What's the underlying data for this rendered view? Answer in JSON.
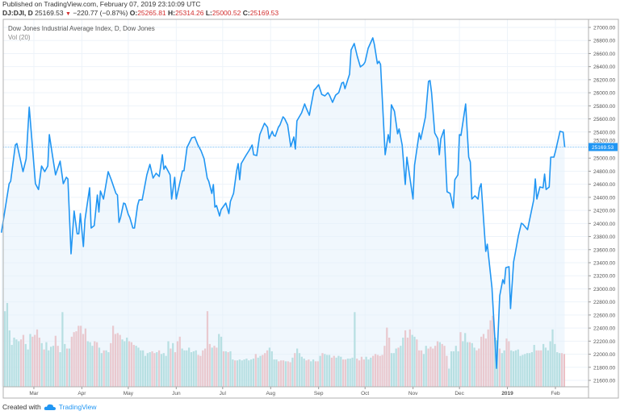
{
  "header": {
    "published": "Published on TradingView.com, February 07, 2019 23:10:09 UTC",
    "symbol": "DJ:DJI, D",
    "last": "25169.53",
    "change": "−220.77 (−0.87%)",
    "open_label": "O:",
    "open": "25265.81",
    "high_label": "H:",
    "high": "25314.26",
    "low_label": "L:",
    "low": "25000.52",
    "close_label": "C:",
    "close": "25169.53"
  },
  "legend": {
    "title": "Dow Jones Industrial Average Index, D, Dow Jones",
    "indicator": "Vol (20)"
  },
  "footer": {
    "created_with": "Created with",
    "brand": "TradingView"
  },
  "colors": {
    "line": "#2196f3",
    "fill": "#e3f0fc",
    "vol_up": "#80cbc4",
    "vol_down": "#ef9a9a",
    "price_tag": "#2196f3",
    "down": "#d32f2f"
  },
  "chart_data": {
    "type": "line",
    "title": "Dow Jones Industrial Average Index, D, Dow Jones",
    "ylim": [
      21500,
      27150
    ],
    "grid": true,
    "last_price_label": "25169.53",
    "y_ticks": [
      "27000.00",
      "26800.00",
      "26600.00",
      "26400.00",
      "26200.00",
      "26000.00",
      "25800.00",
      "25600.00",
      "25400.00",
      "25200.00",
      "25000.00",
      "24800.00",
      "24600.00",
      "24400.00",
      "24200.00",
      "24000.00",
      "23800.00",
      "23600.00",
      "23400.00",
      "23200.00",
      "23000.00",
      "22800.00",
      "22600.00",
      "22400.00",
      "22200.00",
      "22000.00",
      "21800.00",
      "21600.00"
    ],
    "x_ticks": [
      {
        "date": "2018-03-01",
        "label": "Mar"
      },
      {
        "date": "2018-04-01",
        "label": "Apr"
      },
      {
        "date": "2018-05-01",
        "label": "May"
      },
      {
        "date": "2018-06-01",
        "label": "Jun"
      },
      {
        "date": "2018-07-01",
        "label": "Jul"
      },
      {
        "date": "2018-08-01",
        "label": "Aug"
      },
      {
        "date": "2018-09-01",
        "label": "Sep"
      },
      {
        "date": "2018-10-01",
        "label": "Oct"
      },
      {
        "date": "2018-11-01",
        "label": "Nov"
      },
      {
        "date": "2018-12-01",
        "label": "Dec"
      },
      {
        "date": "2019-01-01",
        "label": "2019",
        "bold": true
      },
      {
        "date": "2019-02-01",
        "label": "Feb"
      }
    ],
    "close": [
      [
        "2018-02-08",
        23860
      ],
      [
        "2018-02-13",
        24608
      ],
      [
        "2018-02-14",
        24645
      ],
      [
        "2018-02-17",
        25200
      ],
      [
        "2018-02-18",
        25224
      ],
      [
        "2018-02-22",
        24793
      ],
      [
        "2018-02-24",
        24990
      ],
      [
        "2018-02-26",
        25779
      ],
      [
        "2018-03-02",
        24608
      ],
      [
        "2018-03-04",
        24520
      ],
      [
        "2018-03-06",
        24880
      ],
      [
        "2018-03-08",
        24793
      ],
      [
        "2018-03-10",
        24880
      ],
      [
        "2018-03-11",
        25360
      ],
      [
        "2018-03-13",
        25040
      ],
      [
        "2018-03-15",
        24744
      ],
      [
        "2018-03-18",
        24953
      ],
      [
        "2018-03-20",
        24608
      ],
      [
        "2018-03-22",
        24707
      ],
      [
        "2018-03-23",
        24682
      ],
      [
        "2018-03-25",
        23535
      ],
      [
        "2018-03-27",
        24190
      ],
      [
        "2018-03-29",
        23843
      ],
      [
        "2018-03-30",
        23843
      ],
      [
        "2018-03-31",
        24152
      ],
      [
        "2018-04-02",
        23646
      ],
      [
        "2018-04-03",
        24053
      ],
      [
        "2018-04-06",
        24546
      ],
      [
        "2018-04-07",
        23930
      ],
      [
        "2018-04-09",
        23967
      ],
      [
        "2018-04-11",
        24435
      ],
      [
        "2018-04-12",
        24176
      ],
      [
        "2018-04-13",
        24497
      ],
      [
        "2018-04-15",
        24374
      ],
      [
        "2018-04-18",
        24793
      ],
      [
        "2018-04-20",
        24670
      ],
      [
        "2018-04-23",
        24460
      ],
      [
        "2018-04-24",
        24435
      ],
      [
        "2018-04-25",
        24016
      ],
      [
        "2018-04-26",
        24090
      ],
      [
        "2018-04-28",
        24312
      ],
      [
        "2018-04-29",
        24300
      ],
      [
        "2018-05-01",
        24140
      ],
      [
        "2018-05-02",
        24090
      ],
      [
        "2018-05-04",
        23930
      ],
      [
        "2018-05-05",
        23930
      ],
      [
        "2018-05-07",
        24275
      ],
      [
        "2018-05-08",
        24361
      ],
      [
        "2018-05-10",
        24361
      ],
      [
        "2018-05-13",
        24744
      ],
      [
        "2018-05-15",
        24904
      ],
      [
        "2018-05-17",
        24694
      ],
      [
        "2018-05-19",
        24768
      ],
      [
        "2018-05-21",
        24719
      ],
      [
        "2018-05-23",
        25052
      ],
      [
        "2018-05-24",
        24830
      ],
      [
        "2018-05-25",
        24880
      ],
      [
        "2018-05-28",
        24744
      ],
      [
        "2018-05-29",
        24374
      ],
      [
        "2018-05-31",
        24707
      ],
      [
        "2018-06-01",
        24374
      ],
      [
        "2018-06-05",
        24805
      ],
      [
        "2018-06-06",
        24805
      ],
      [
        "2018-06-08",
        25163
      ],
      [
        "2018-06-11",
        25311
      ],
      [
        "2018-06-13",
        25323
      ],
      [
        "2018-06-15",
        25200
      ],
      [
        "2018-06-17",
        25114
      ],
      [
        "2018-06-19",
        24990
      ],
      [
        "2018-06-21",
        24694
      ],
      [
        "2018-06-22",
        24645
      ],
      [
        "2018-06-24",
        24460
      ],
      [
        "2018-06-25",
        24596
      ],
      [
        "2018-06-26",
        24250
      ],
      [
        "2018-06-27",
        24275
      ],
      [
        "2018-06-29",
        24115
      ],
      [
        "2018-06-30",
        24213
      ],
      [
        "2018-07-03",
        24312
      ],
      [
        "2018-07-05",
        24152
      ],
      [
        "2018-07-06",
        24337
      ],
      [
        "2018-07-08",
        24460
      ],
      [
        "2018-07-10",
        24805
      ],
      [
        "2018-07-11",
        24916
      ],
      [
        "2018-07-12",
        24670
      ],
      [
        "2018-07-13",
        24916
      ],
      [
        "2018-07-16",
        25040
      ],
      [
        "2018-07-18",
        25114
      ],
      [
        "2018-07-20",
        25200
      ],
      [
        "2018-07-21",
        25052
      ],
      [
        "2018-07-23",
        25040
      ],
      [
        "2018-07-25",
        25360
      ],
      [
        "2018-07-28",
        25533
      ],
      [
        "2018-07-30",
        25471
      ],
      [
        "2018-07-31",
        25298
      ],
      [
        "2018-08-02",
        25409
      ],
      [
        "2018-08-03",
        25348
      ],
      [
        "2018-08-04",
        25335
      ],
      [
        "2018-08-06",
        25471
      ],
      [
        "2018-08-07",
        25508
      ],
      [
        "2018-08-09",
        25631
      ],
      [
        "2018-08-10",
        25607
      ],
      [
        "2018-08-12",
        25508
      ],
      [
        "2018-08-14",
        25175
      ],
      [
        "2018-08-16",
        25323
      ],
      [
        "2018-08-17",
        25138
      ],
      [
        "2018-08-18",
        25570
      ],
      [
        "2018-08-21",
        25693
      ],
      [
        "2018-08-23",
        25829
      ],
      [
        "2018-08-24",
        25767
      ],
      [
        "2018-08-26",
        25656
      ],
      [
        "2018-08-27",
        25792
      ],
      [
        "2018-08-29",
        26038
      ],
      [
        "2018-08-30",
        26063
      ],
      [
        "2018-09-01",
        26124
      ],
      [
        "2018-09-03",
        25976
      ],
      [
        "2018-09-05",
        25952
      ],
      [
        "2018-09-07",
        26001
      ],
      [
        "2018-09-08",
        25964
      ],
      [
        "2018-09-10",
        25853
      ],
      [
        "2018-09-12",
        25964
      ],
      [
        "2018-09-14",
        26001
      ],
      [
        "2018-09-16",
        26149
      ],
      [
        "2018-09-17",
        26161
      ],
      [
        "2018-09-18",
        26063
      ],
      [
        "2018-09-21",
        26285
      ],
      [
        "2018-09-22",
        26655
      ],
      [
        "2018-09-24",
        26753
      ],
      [
        "2018-09-26",
        26556
      ],
      [
        "2018-09-28",
        26396
      ],
      [
        "2018-09-30",
        26433
      ],
      [
        "2018-10-01",
        26470
      ],
      [
        "2018-10-03",
        26680
      ],
      [
        "2018-10-06",
        26840
      ],
      [
        "2018-10-07",
        26741
      ],
      [
        "2018-10-09",
        26445
      ],
      [
        "2018-10-10",
        26482
      ],
      [
        "2018-10-11",
        26433
      ],
      [
        "2018-10-14",
        25052
      ],
      [
        "2018-10-16",
        25360
      ],
      [
        "2018-10-17",
        25237
      ],
      [
        "2018-10-18",
        25816
      ],
      [
        "2018-10-20",
        25718
      ],
      [
        "2018-10-22",
        25372
      ],
      [
        "2018-10-23",
        25446
      ],
      [
        "2018-10-25",
        25200
      ],
      [
        "2018-10-27",
        24596
      ],
      [
        "2018-10-28",
        25015
      ],
      [
        "2018-11-01",
        24374
      ],
      [
        "2018-11-02",
        24892
      ],
      [
        "2018-11-05",
        25385
      ],
      [
        "2018-11-06",
        25286
      ],
      [
        "2018-11-09",
        25631
      ],
      [
        "2018-11-11",
        26174
      ],
      [
        "2018-11-12",
        26186
      ],
      [
        "2018-11-13",
        26001
      ],
      [
        "2018-11-15",
        25385
      ],
      [
        "2018-11-17",
        25298
      ],
      [
        "2018-11-18",
        25052
      ],
      [
        "2018-11-19",
        25298
      ],
      [
        "2018-11-21",
        25434
      ],
      [
        "2018-11-23",
        24485
      ],
      [
        "2018-11-25",
        24460
      ],
      [
        "2018-11-27",
        24238
      ],
      [
        "2018-11-28",
        24670
      ],
      [
        "2018-11-30",
        24744
      ],
      [
        "2018-12-01",
        25360
      ],
      [
        "2018-12-02",
        25348
      ],
      [
        "2018-12-05",
        25829
      ],
      [
        "2018-12-07",
        25015
      ],
      [
        "2018-12-08",
        24941
      ],
      [
        "2018-12-09",
        24374
      ],
      [
        "2018-12-11",
        24423
      ],
      [
        "2018-12-13",
        24374
      ],
      [
        "2018-12-14",
        24546
      ],
      [
        "2018-12-15",
        24608
      ],
      [
        "2018-12-18",
        23572
      ],
      [
        "2018-12-19",
        23683
      ],
      [
        "2018-12-22",
        23017
      ],
      [
        "2018-12-25",
        21784
      ],
      [
        "2018-12-27",
        22894
      ],
      [
        "2018-12-29",
        23140
      ],
      [
        "2018-12-30",
        23079
      ],
      [
        "2018-12-31",
        23325
      ],
      [
        "2019-01-02",
        23338
      ],
      [
        "2019-01-03",
        22697
      ],
      [
        "2019-01-05",
        23412
      ],
      [
        "2019-01-06",
        23535
      ],
      [
        "2019-01-08",
        23806
      ],
      [
        "2019-01-10",
        24003
      ],
      [
        "2019-01-11",
        23991
      ],
      [
        "2019-01-14",
        23905
      ],
      [
        "2019-01-18",
        24361
      ],
      [
        "2019-01-19",
        24682
      ],
      [
        "2019-01-20",
        24374
      ],
      [
        "2019-01-22",
        24559
      ],
      [
        "2019-01-24",
        24546
      ],
      [
        "2019-01-25",
        24756
      ],
      [
        "2019-01-26",
        24520
      ],
      [
        "2019-01-28",
        24559
      ],
      [
        "2019-01-29",
        25015
      ],
      [
        "2019-01-31",
        25015
      ],
      [
        "2019-02-01",
        25101
      ],
      [
        "2019-02-04",
        25409
      ],
      [
        "2019-02-06",
        25397
      ],
      [
        "2019-02-07",
        25169
      ]
    ],
    "volume_relative": [
      83,
      92,
      62,
      46,
      54,
      52,
      50,
      -52,
      -57,
      47,
      41,
      58,
      -55,
      -57,
      -63,
      -54,
      48,
      -41,
      49,
      40,
      44,
      45,
      -56,
      -45,
      38,
      82,
      47,
      -42,
      42,
      -55,
      -60,
      -61,
      -67,
      -67,
      -58,
      -64,
      50,
      49,
      45,
      -50,
      -49,
      43,
      37,
      -40,
      40,
      38,
      -48,
      -67,
      -58,
      -59,
      -57,
      52,
      50,
      54,
      -50,
      -49,
      -46,
      45,
      43,
      40,
      40,
      34,
      37,
      38,
      -39,
      -37,
      38,
      -40,
      36,
      37,
      34,
      50,
      -42,
      48,
      -38,
      -50,
      -55,
      42,
      40,
      40,
      43,
      38,
      39,
      40,
      -35,
      -34,
      -40,
      -42,
      -83,
      -47,
      43,
      -45,
      -43,
      58,
      55,
      -39,
      39,
      -38,
      39,
      30,
      -29,
      29,
      30,
      29,
      30,
      31,
      29,
      30,
      31,
      -36,
      32,
      34,
      -35,
      -37,
      -40,
      43,
      39,
      30,
      30,
      -28,
      -29,
      -29,
      28,
      -28,
      -27,
      32,
      -37,
      42,
      37,
      33,
      31,
      -29,
      -30,
      28,
      30,
      -28,
      -28,
      34,
      -37,
      36,
      35,
      35,
      -32,
      -34,
      32,
      34,
      33,
      -30,
      -30,
      31,
      31,
      32,
      82,
      -31,
      -29,
      -33,
      -30,
      33,
      30,
      32,
      -34,
      -36,
      -35,
      -34,
      -35,
      -45,
      -65,
      -54,
      37,
      37,
      42,
      -43,
      45,
      54,
      -62,
      -54,
      -63,
      57,
      55,
      -52,
      -40,
      -40,
      36,
      45,
      -42,
      -44,
      -42,
      -45,
      -50,
      49,
      -47,
      -45,
      -34,
      20,
      39,
      39,
      45,
      39,
      -60,
      50,
      59,
      49,
      -49,
      48,
      43,
      -40,
      -42,
      -55,
      -58,
      -53,
      -63,
      -73,
      -78,
      54,
      51,
      -42,
      37,
      40,
      -53,
      -50,
      40,
      39,
      40,
      41,
      34,
      35,
      36,
      37,
      37,
      38,
      46,
      -40,
      -40,
      -40,
      47,
      43,
      40,
      50,
      63,
      47,
      38,
      37,
      -37,
      -36
    ]
  }
}
